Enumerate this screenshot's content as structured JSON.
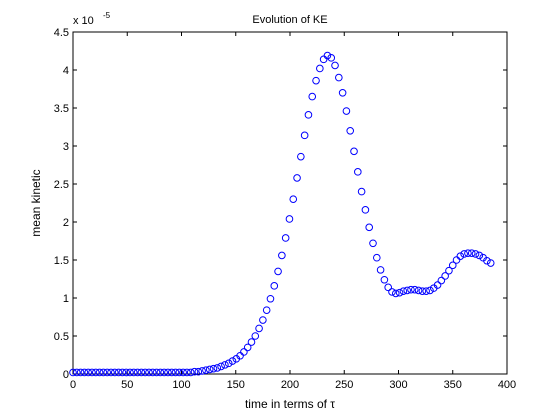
{
  "chart_data": {
    "type": "scatter",
    "title": "Evolution of KE",
    "xlabel": "time in terms of τ",
    "ylabel": "mean kinetic",
    "y_multiplier": "x 10",
    "y_exponent": "-5",
    "xlim": [
      0,
      400
    ],
    "ylim": [
      0,
      4.5
    ],
    "xticks": [
      "0",
      "50",
      "100",
      "150",
      "200",
      "250",
      "300",
      "350",
      "400"
    ],
    "yticks": [
      "0",
      "0.5",
      "1",
      "1.5",
      "2",
      "2.5",
      "3",
      "3.5",
      "4",
      "4.5"
    ],
    "grid": false,
    "marker": "circle-open",
    "marker_color": "#0000ff",
    "series": [
      {
        "x": [
          0,
          3.5,
          7,
          10.5,
          14,
          17.5,
          21,
          24.5,
          28,
          31.5,
          35,
          38.5,
          42,
          45.5,
          49,
          52.5,
          56,
          59.5,
          63,
          66.5,
          70,
          73.5,
          77,
          80.5,
          84,
          87.5,
          91,
          94.5,
          98,
          101.5,
          105,
          108.5,
          112,
          115.5,
          119,
          122.5,
          126,
          129.5,
          133,
          136.5,
          140,
          143.5,
          147,
          150.5,
          154,
          157.5,
          161,
          164.5,
          168,
          171.5,
          175,
          178.5,
          182,
          185.5,
          189,
          192.5,
          196,
          199.5,
          203,
          206.5,
          210,
          213.5,
          217,
          220.5,
          224,
          227.5,
          231,
          234.5,
          238,
          241.5,
          245,
          248.5,
          252,
          255.5,
          259,
          262.5,
          266,
          269.5,
          273,
          276.5,
          280,
          283.5,
          287,
          290.5,
          294,
          297.5,
          301,
          304.5,
          308,
          311.5,
          315,
          318.5,
          322,
          325.5,
          329,
          332.5,
          336,
          339.5,
          343,
          346.5,
          350,
          353.5,
          357,
          360.5,
          364,
          367.5,
          371,
          374.5,
          378,
          381.5,
          385
        ],
        "y": [
          0.02,
          0.02,
          0.02,
          0.02,
          0.02,
          0.02,
          0.02,
          0.02,
          0.02,
          0.02,
          0.02,
          0.02,
          0.02,
          0.02,
          0.02,
          0.02,
          0.02,
          0.02,
          0.02,
          0.02,
          0.02,
          0.02,
          0.02,
          0.02,
          0.02,
          0.02,
          0.02,
          0.02,
          0.02,
          0.02,
          0.02,
          0.02,
          0.03,
          0.03,
          0.04,
          0.05,
          0.06,
          0.07,
          0.08,
          0.1,
          0.12,
          0.14,
          0.17,
          0.2,
          0.24,
          0.29,
          0.35,
          0.42,
          0.5,
          0.6,
          0.71,
          0.84,
          0.99,
          1.16,
          1.35,
          1.56,
          1.79,
          2.04,
          2.3,
          2.58,
          2.86,
          3.14,
          3.41,
          3.65,
          3.86,
          4.02,
          4.14,
          4.19,
          4.16,
          4.06,
          3.9,
          3.7,
          3.46,
          3.2,
          2.93,
          2.66,
          2.4,
          2.16,
          1.93,
          1.72,
          1.53,
          1.37,
          1.24,
          1.14,
          1.08,
          1.06,
          1.07,
          1.09,
          1.1,
          1.11,
          1.11,
          1.1,
          1.09,
          1.09,
          1.1,
          1.13,
          1.17,
          1.23,
          1.29,
          1.36,
          1.43,
          1.5,
          1.55,
          1.58,
          1.59,
          1.59,
          1.58,
          1.56,
          1.53,
          1.49,
          1.46
        ]
      }
    ]
  }
}
